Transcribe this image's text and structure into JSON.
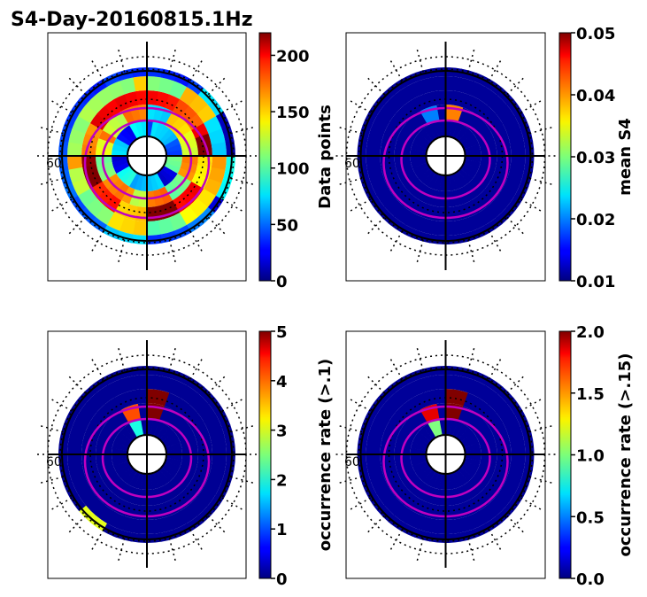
{
  "title": "S4-Day-20160815.1Hz",
  "colors": {
    "circle": "#000000",
    "oval": "#c000c0",
    "background_cell": "#00008f",
    "frame": "#000000"
  },
  "panels": [
    {
      "name": "data-points",
      "polar_label": "60",
      "colorbar": {
        "label": "Data points",
        "ticks": [
          "0",
          "50",
          "100",
          "150",
          "200"
        ],
        "tick_values": [
          0,
          50,
          100,
          150,
          200
        ],
        "range": [
          0,
          220
        ]
      }
    },
    {
      "name": "mean-s4",
      "polar_label": "60",
      "colorbar": {
        "label": "mean S4",
        "ticks": [
          "0.01",
          "0.02",
          "0.03",
          "0.04",
          "0.05"
        ],
        "tick_values": [
          0.01,
          0.02,
          0.03,
          0.04,
          0.05
        ],
        "range": [
          0.01,
          0.05
        ]
      }
    },
    {
      "name": "occurrence-gt-01",
      "polar_label": "60",
      "colorbar": {
        "label": "occurrence rate (>.1)",
        "ticks": [
          "0",
          "1",
          "2",
          "3",
          "4",
          "5"
        ],
        "tick_values": [
          0,
          1,
          2,
          3,
          4,
          5
        ],
        "range": [
          0,
          5
        ]
      }
    },
    {
      "name": "occurrence-gt-015",
      "polar_label": "60",
      "colorbar": {
        "label": "occurrence rate (>.15)",
        "ticks": [
          "0.0",
          "0.5",
          "1.0",
          "1.5",
          "2.0"
        ],
        "tick_values": [
          0.0,
          0.5,
          1.0,
          1.5,
          2.0
        ],
        "range": [
          0.0,
          2.0
        ]
      }
    }
  ],
  "chart_data": [
    {
      "type": "heatmap",
      "projection": "polar",
      "title": "S4-Day-20160815.1Hz",
      "colorbar_label": "Data points",
      "vmin": 0,
      "vmax": 220,
      "rings": [
        {
          "lat_band": "high",
          "values": [
            60,
            80,
            40,
            90,
            30,
            70,
            50,
            100,
            20,
            60,
            40,
            80
          ]
        },
        {
          "lat_band": "mid-high",
          "values": [
            90,
            150,
            120,
            180,
            110,
            160,
            140,
            170,
            100,
            150,
            130,
            160
          ]
        },
        {
          "lat_band": "oval",
          "values": [
            200,
            170,
            215,
            150,
            190,
            210,
            160,
            185,
            205,
            175,
            195,
            180
          ]
        },
        {
          "lat_band": "mid-low",
          "values": [
            110,
            140,
            90,
            160,
            130,
            120,
            150,
            100,
            140,
            120,
            110,
            130
          ]
        },
        {
          "lat_band": "low",
          "values": [
            30,
            60,
            20,
            80,
            40,
            50,
            70,
            30,
            60,
            40,
            20,
            50
          ]
        }
      ]
    },
    {
      "type": "heatmap",
      "projection": "polar",
      "colorbar_label": "mean S4",
      "vmin": 0.01,
      "vmax": 0.05,
      "background_value": 0.011,
      "hotspots": [
        {
          "lat_band": "mid-high",
          "sector": 0,
          "value": 0.04
        },
        {
          "lat_band": "mid-high",
          "sector": 11,
          "value": 0.02
        }
      ]
    },
    {
      "type": "heatmap",
      "projection": "polar",
      "colorbar_label": "occurrence rate (>.1)",
      "vmin": 0,
      "vmax": 5,
      "background_value": 0.1,
      "hotspots": [
        {
          "lat_band": "high",
          "sector": 11,
          "value": 2.0
        },
        {
          "lat_band": "mid-high",
          "sector": 11,
          "value": 4.0
        },
        {
          "lat_band": "mid-high",
          "sector": 0,
          "value": 5.0
        },
        {
          "lat_band": "oval",
          "sector": 0,
          "value": 5.0
        },
        {
          "lat_band": "low",
          "sector": 7,
          "value": 3.0
        }
      ]
    },
    {
      "type": "heatmap",
      "projection": "polar",
      "colorbar_label": "occurrence rate (>.15)",
      "vmin": 0.0,
      "vmax": 2.0,
      "background_value": 0.05,
      "hotspots": [
        {
          "lat_band": "high",
          "sector": 11,
          "value": 1.0
        },
        {
          "lat_band": "mid-high",
          "sector": 11,
          "value": 1.8
        },
        {
          "lat_band": "mid-high",
          "sector": 0,
          "value": 2.0
        },
        {
          "lat_band": "oval",
          "sector": 0,
          "value": 2.0
        }
      ]
    }
  ]
}
